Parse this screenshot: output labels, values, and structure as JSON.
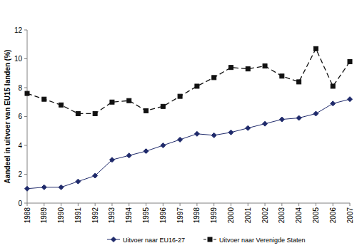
{
  "chart_data": {
    "type": "line",
    "y_label": "Aandeel in uitvoer van EU15 landen (%)",
    "categories": [
      "1988",
      "1989",
      "1990",
      "1991",
      "1992",
      "1993",
      "1994",
      "1995",
      "1996",
      "1997",
      "1998",
      "1999",
      "2000",
      "2001",
      "2002",
      "2003",
      "2004",
      "2005",
      "2006",
      "2007"
    ],
    "series": [
      {
        "name": "Uitvoer naar EU16-27",
        "color": "#1f2a6b",
        "marker": "diamond",
        "line_style": "solid",
        "values": [
          1.0,
          1.1,
          1.1,
          1.5,
          1.9,
          3.0,
          3.3,
          3.6,
          4.0,
          4.4,
          4.8,
          4.7,
          4.9,
          5.2,
          5.5,
          5.8,
          5.9,
          6.2,
          6.9,
          7.2
        ]
      },
      {
        "name": "Uitvoer naar Verenigde Staten",
        "color": "#111111",
        "marker": "square",
        "line_style": "dashed",
        "values": [
          7.6,
          7.2,
          6.8,
          6.2,
          6.2,
          7.0,
          7.1,
          6.4,
          6.7,
          7.4,
          8.1,
          8.7,
          9.4,
          9.3,
          9.5,
          8.8,
          8.4,
          10.7,
          8.1,
          9.8
        ]
      }
    ],
    "ylim": [
      0,
      12
    ],
    "yticks": [
      0,
      2,
      4,
      6,
      8,
      10,
      12
    ],
    "grid": false,
    "legend": "bottom"
  }
}
